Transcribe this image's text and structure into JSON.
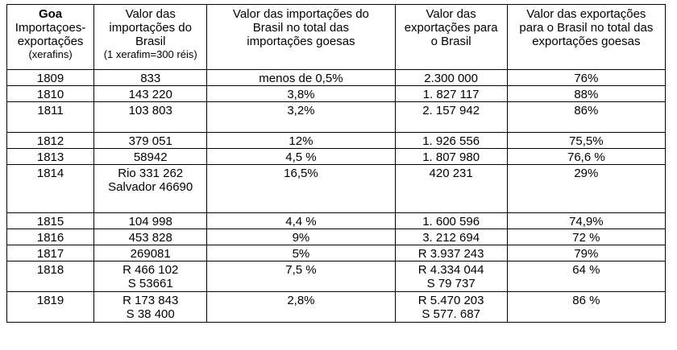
{
  "header": {
    "col1_title": "Goa",
    "col1_l2": "Importaçoes-",
    "col1_l3": "exportações",
    "col1_l4": "(xerafins)",
    "col2_l1": "Valor das",
    "col2_l2": "importações do",
    "col2_l3": "Brasil",
    "col2_l4": "(1 xerafim=300 réis)",
    "col3_l1": "Valor das importações do",
    "col3_l2": "Brasil no total das",
    "col3_l3": "importações goesas",
    "col4_l1": "Valor das",
    "col4_l2": "exportações para",
    "col4_l3": "o Brasil",
    "col5_l1": "Valor das exportações",
    "col5_l2": "para o Brasil no total das",
    "col5_l3": "exportações goesas"
  },
  "rows": [
    {
      "year": "1809",
      "imp": [
        "833"
      ],
      "imp_share": "menos de 0,5%",
      "exp": [
        "2.300 000"
      ],
      "exp_share": "76%"
    },
    {
      "year": "1810",
      "imp": [
        "143 220"
      ],
      "imp_share": "3,8%",
      "exp": [
        "1. 827 117"
      ],
      "exp_share": "88%"
    },
    {
      "year": "1811",
      "imp": [
        "103 803"
      ],
      "imp_share": "3,2%",
      "exp": [
        "2. 157 942"
      ],
      "exp_share": "86%"
    },
    {
      "year": "1812",
      "imp": [
        "379 051"
      ],
      "imp_share": "12%",
      "exp": [
        "1. 926 556"
      ],
      "exp_share": "75,5%"
    },
    {
      "year": "1813",
      "imp": [
        "58942"
      ],
      "imp_share": "4,5 %",
      "exp": [
        "1. 807 980"
      ],
      "exp_share": "76,6 %"
    },
    {
      "year": "1814",
      "imp": [
        "Rio 331 262",
        "Salvador 46690"
      ],
      "imp_share": "16,5%",
      "exp": [
        "420 231"
      ],
      "exp_share": "29%"
    },
    {
      "year": "1815",
      "imp": [
        "104 998"
      ],
      "imp_share": "4,4 %",
      "exp": [
        "1. 600 596"
      ],
      "exp_share": "74,9%"
    },
    {
      "year": "1816",
      "imp": [
        "453 828"
      ],
      "imp_share": "9%",
      "exp": [
        "3. 212 694"
      ],
      "exp_share": "72 %"
    },
    {
      "year": "1817",
      "imp": [
        "269081"
      ],
      "imp_share": "5%",
      "exp": [
        "R 3.937 243"
      ],
      "exp_share": "79%"
    },
    {
      "year": "1818",
      "imp": [
        "R 466 102",
        "S 53661"
      ],
      "imp_share": "7,5 %",
      "exp": [
        "R 4.334 044",
        "S 79 737"
      ],
      "exp_share": "64 %"
    },
    {
      "year": "1819",
      "imp": [
        "R 173 843",
        "S 38 400"
      ],
      "imp_share": "2,8%",
      "exp": [
        "R 5.470 203",
        "S 577. 687"
      ],
      "exp_share": "86 %"
    }
  ]
}
